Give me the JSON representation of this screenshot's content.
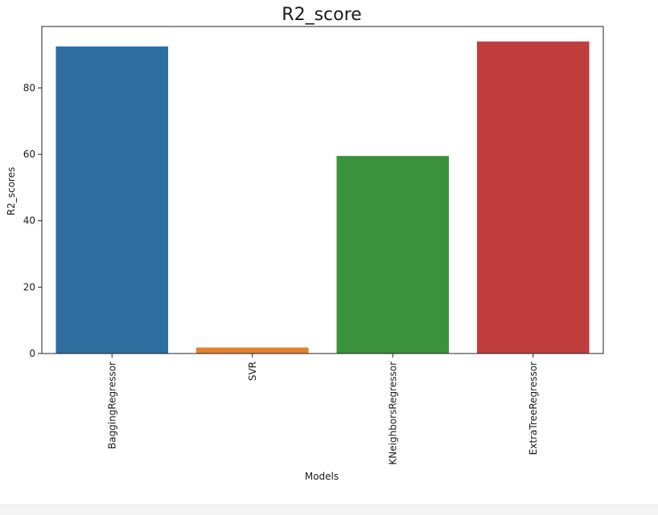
{
  "chart_data": {
    "type": "bar",
    "title": "R2_score",
    "xlabel": "Models",
    "ylabel": "R2_scores",
    "categories": [
      "BaggingRegressor",
      "SVR",
      "KNeighborsRegressor",
      "ExtraTreeRegressor"
    ],
    "values": [
      92.5,
      1.8,
      59.5,
      94.0
    ],
    "colors": [
      "#2f6f9f",
      "#e1812c",
      "#3a923a",
      "#c03d3e"
    ],
    "ylim": [
      0,
      98.5
    ],
    "yticks": [
      0,
      20,
      40,
      60,
      80
    ],
    "grid": false,
    "legend": "none"
  }
}
